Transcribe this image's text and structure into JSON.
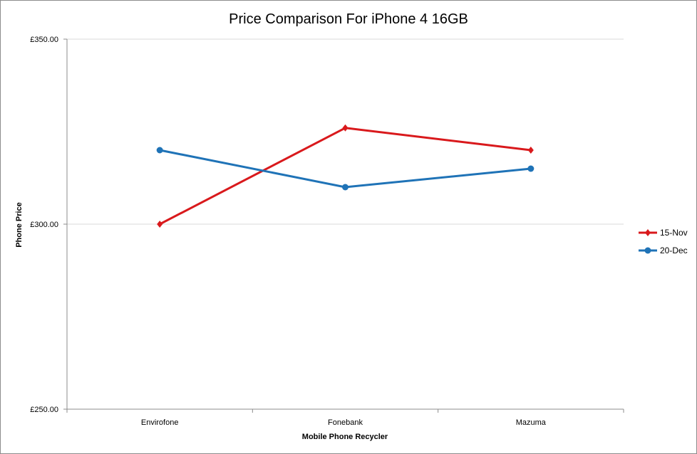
{
  "chart_data": {
    "type": "line",
    "title": "Price Comparison For iPhone 4 16GB",
    "xlabel": "Mobile Phone Recycler",
    "ylabel": "Phone Price",
    "categories": [
      "Envirofone",
      "Fonebank",
      "Mazuma"
    ],
    "ylim": [
      250,
      350
    ],
    "yticks": [
      250,
      300,
      350
    ],
    "ytick_labels": [
      "£250.00",
      "£300.00",
      "£350.00"
    ],
    "grid": true,
    "legend_position": "right",
    "series": [
      {
        "name": "15-Nov",
        "values": [
          300,
          326,
          320
        ],
        "color": "#d9191c",
        "marker": "diamond"
      },
      {
        "name": "20-Dec",
        "values": [
          320,
          310,
          315
        ],
        "color": "#1f73b7",
        "marker": "circle"
      }
    ]
  }
}
